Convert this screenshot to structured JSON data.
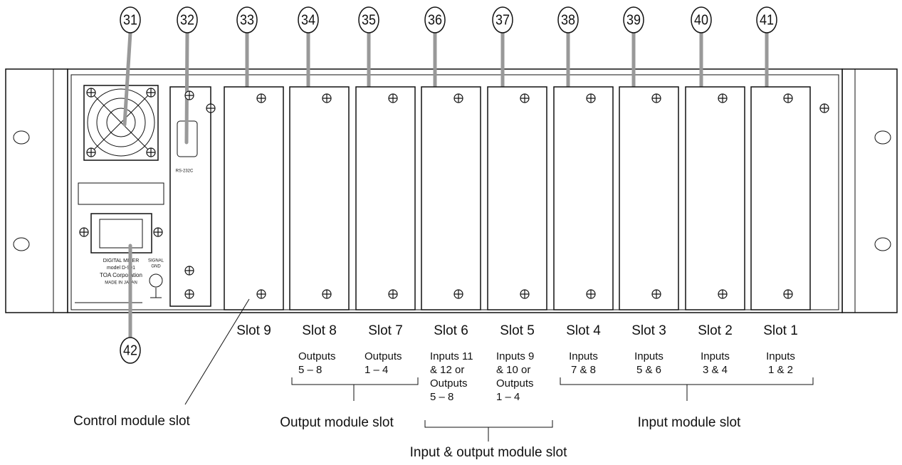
{
  "callouts": [
    "31",
    "32",
    "33",
    "34",
    "35",
    "36",
    "37",
    "38",
    "39",
    "40",
    "41",
    "42"
  ],
  "panel": {
    "model_lines": [
      "DIGITAL MIXER",
      "model D-901",
      "TOA Corporation",
      "MADE IN JAPAN"
    ],
    "signal_gnd": [
      "SIGNAL",
      "GND"
    ],
    "serial_port": "RS-232C"
  },
  "slots": [
    {
      "name": "Slot 9"
    },
    {
      "name": "Slot 8",
      "description": [
        "Outputs",
        "5 – 8"
      ]
    },
    {
      "name": "Slot 7",
      "description": [
        "Outputs",
        "1 – 4"
      ]
    },
    {
      "name": "Slot 6",
      "description": [
        "Inputs 11",
        "& 12 or",
        "Outputs",
        "5 – 8"
      ]
    },
    {
      "name": "Slot 5",
      "description": [
        "Inputs 9",
        "& 10 or",
        "Outputs",
        "1 – 4"
      ]
    },
    {
      "name": "Slot 4",
      "description": [
        "Inputs",
        "7 & 8"
      ]
    },
    {
      "name": "Slot 3",
      "description": [
        "Inputs",
        "5 & 6"
      ]
    },
    {
      "name": "Slot 2",
      "description": [
        "Inputs",
        "3 & 4"
      ]
    },
    {
      "name": "Slot 1",
      "description": [
        "Inputs",
        "1 & 2"
      ]
    }
  ],
  "groups": {
    "control": "Control module slot",
    "output": "Output module slot",
    "input_output": "Input & output module slot",
    "input": "Input module slot"
  }
}
